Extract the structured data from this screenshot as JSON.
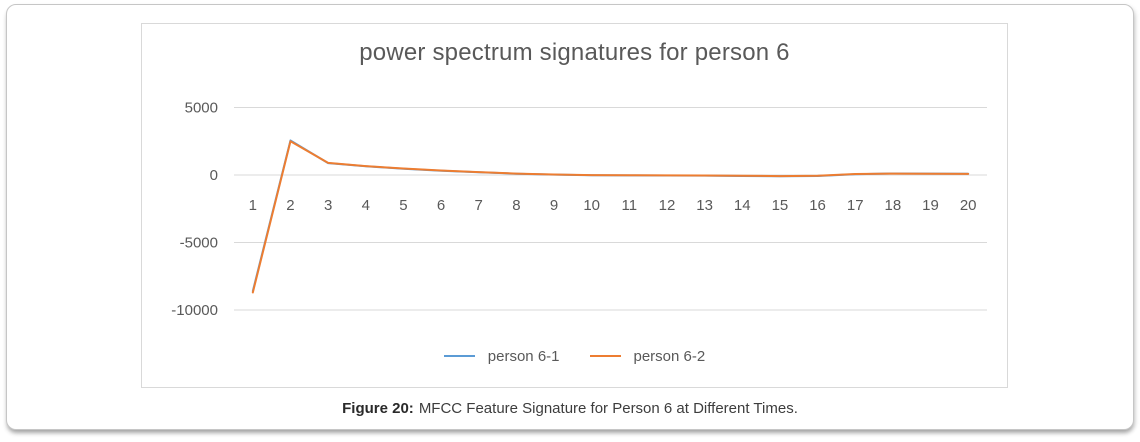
{
  "figure": {
    "caption": {
      "label": "Figure 20:",
      "text": "MFCC Feature Signature for Person 6 at Different Times."
    }
  },
  "chart_data": {
    "type": "line",
    "title": "power spectrum signatures for person 6",
    "categories": [
      "1",
      "2",
      "3",
      "4",
      "5",
      "6",
      "7",
      "8",
      "9",
      "10",
      "11",
      "12",
      "13",
      "14",
      "15",
      "16",
      "17",
      "18",
      "19",
      "20"
    ],
    "series": [
      {
        "name": "person 6-1",
        "color": "#5B9BD5",
        "values": [
          -8600,
          2560,
          880,
          645,
          465,
          315,
          205,
          95,
          25,
          -15,
          -25,
          -35,
          -45,
          -70,
          -95,
          -75,
          60,
          115,
          105,
          95
        ]
      },
      {
        "name": "person 6-2",
        "color": "#ED7D31",
        "values": [
          -8700,
          2500,
          900,
          660,
          480,
          330,
          215,
          105,
          35,
          -5,
          -15,
          -25,
          -35,
          -55,
          -80,
          -60,
          75,
          100,
          90,
          85
        ]
      }
    ],
    "y_ticks": [
      5000,
      0,
      -5000,
      -10000
    ],
    "y_axis_range": [
      -10000,
      5000
    ],
    "x_axis_range": [
      1,
      20
    ],
    "grid": "horizontal",
    "legend_position": "bottom",
    "styles": {
      "text_color": "#595959",
      "grid_color": "#d9d9d9",
      "plot_border_color": "#d9d9d9",
      "line_width": 2
    }
  }
}
